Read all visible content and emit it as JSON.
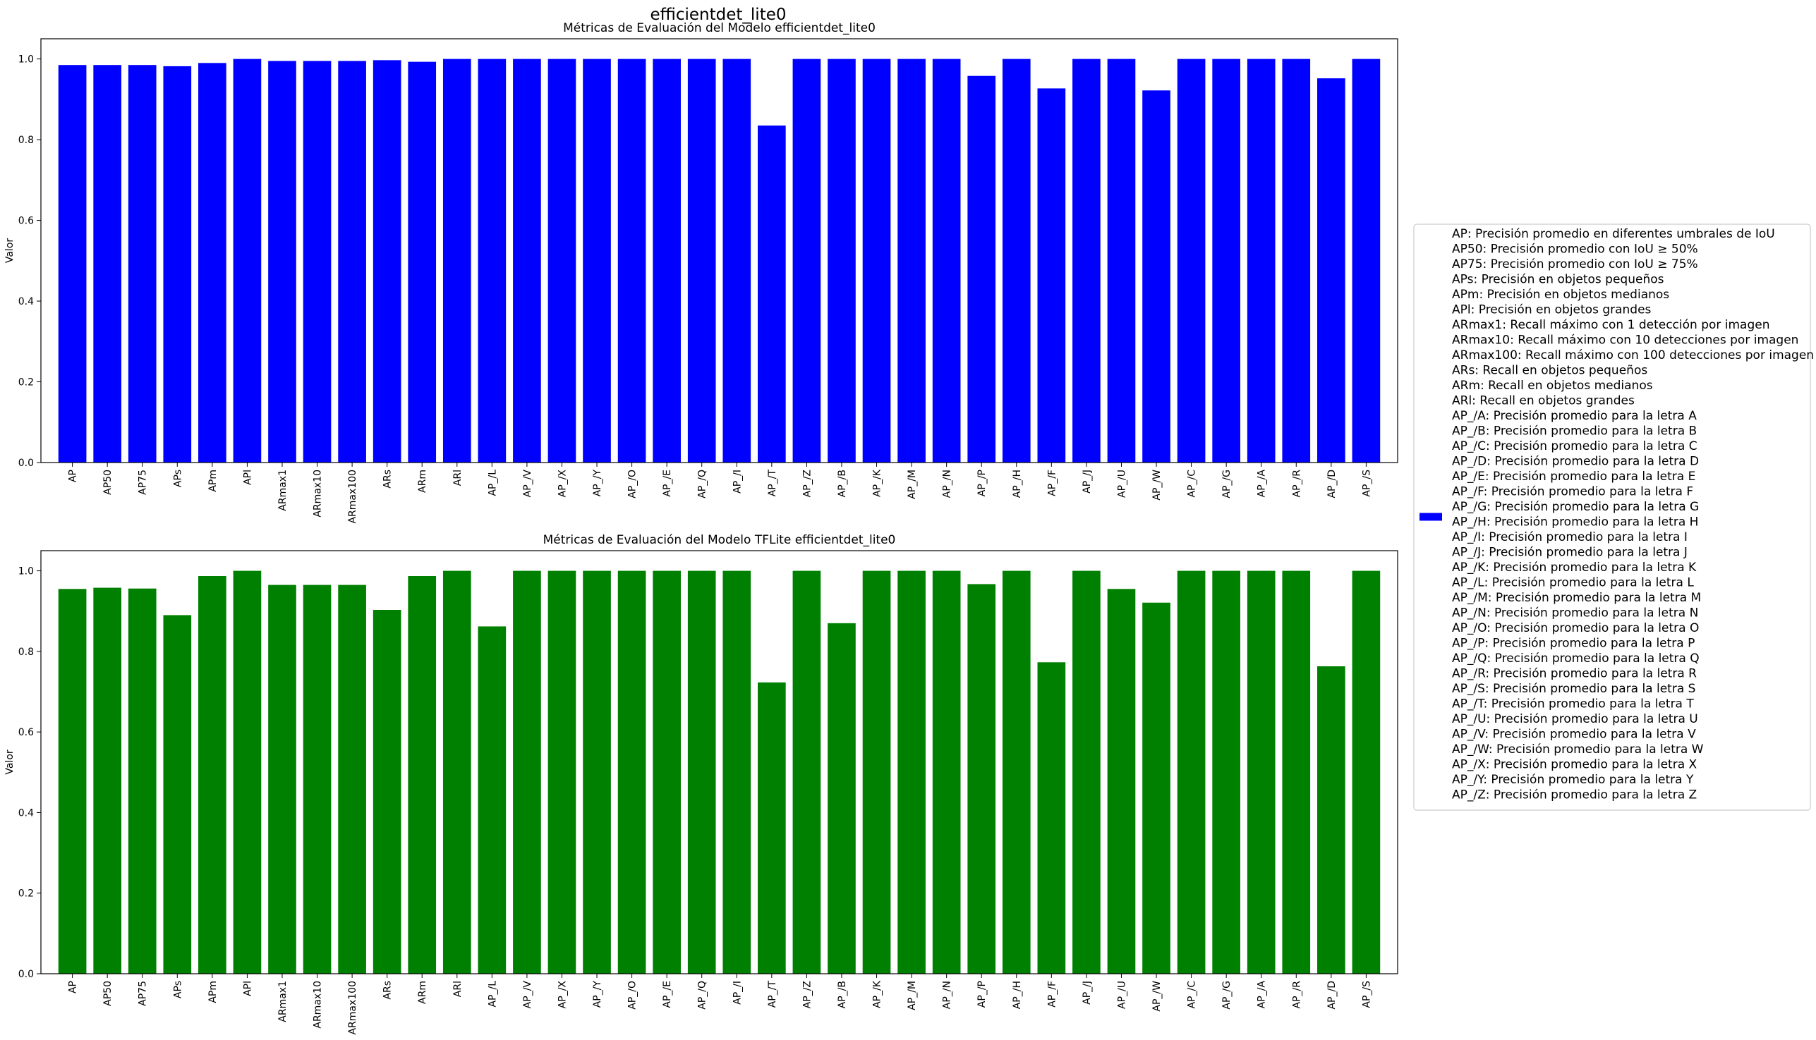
{
  "suptitle": "efficientdet_lite0",
  "chart_data": [
    {
      "type": "bar",
      "title": "Métricas de Evaluación del Modelo efficientdet_lite0",
      "xlabel": "",
      "ylabel": "Valor",
      "ylim": [
        0,
        1.05
      ],
      "yticks": [
        "0.0",
        "0.2",
        "0.4",
        "0.6",
        "0.8",
        "1.0"
      ],
      "color": "#0000ff",
      "categories": [
        "AP",
        "AP50",
        "AP75",
        "APs",
        "APm",
        "APl",
        "ARmax1",
        "ARmax10",
        "ARmax100",
        "ARs",
        "ARm",
        "ARl",
        "AP_/L",
        "AP_/V",
        "AP_/X",
        "AP_/Y",
        "AP_/O",
        "AP_/E",
        "AP_/Q",
        "AP_/I",
        "AP_/T",
        "AP_/Z",
        "AP_/B",
        "AP_/K",
        "AP_/M",
        "AP_/N",
        "AP_/P",
        "AP_/H",
        "AP_/F",
        "AP_/J",
        "AP_/U",
        "AP_/W",
        "AP_/C",
        "AP_/G",
        "AP_/A",
        "AP_/R",
        "AP_/D",
        "AP_/S"
      ],
      "values": [
        0.985,
        0.985,
        0.985,
        0.982,
        0.99,
        1.0,
        0.995,
        0.995,
        0.995,
        0.997,
        0.993,
        1.0,
        1.0,
        1.0,
        1.0,
        1.0,
        1.0,
        1.0,
        1.0,
        1.0,
        0.835,
        1.0,
        1.0,
        1.0,
        1.0,
        1.0,
        0.958,
        1.0,
        0.927,
        1.0,
        1.0,
        0.922,
        1.0,
        1.0,
        1.0,
        1.0,
        0.952,
        1.0
      ],
      "grid": false
    },
    {
      "type": "bar",
      "title": "Métricas de Evaluación del Modelo TFLite efficientdet_lite0",
      "xlabel": "",
      "ylabel": "Valor",
      "ylim": [
        0,
        1.05
      ],
      "yticks": [
        "0.0",
        "0.2",
        "0.4",
        "0.6",
        "0.8",
        "1.0"
      ],
      "color": "#008000",
      "categories": [
        "AP",
        "AP50",
        "AP75",
        "APs",
        "APm",
        "APl",
        "ARmax1",
        "ARmax10",
        "ARmax100",
        "ARs",
        "ARm",
        "ARl",
        "AP_/L",
        "AP_/V",
        "AP_/X",
        "AP_/Y",
        "AP_/O",
        "AP_/E",
        "AP_/Q",
        "AP_/I",
        "AP_/T",
        "AP_/Z",
        "AP_/B",
        "AP_/K",
        "AP_/M",
        "AP_/N",
        "AP_/P",
        "AP_/H",
        "AP_/F",
        "AP_/J",
        "AP_/U",
        "AP_/W",
        "AP_/C",
        "AP_/G",
        "AP_/A",
        "AP_/R",
        "AP_/D",
        "AP_/S"
      ],
      "values": [
        0.955,
        0.958,
        0.956,
        0.89,
        0.987,
        1.0,
        0.965,
        0.965,
        0.965,
        0.903,
        0.987,
        1.0,
        0.862,
        1.0,
        1.0,
        1.0,
        1.0,
        1.0,
        1.0,
        1.0,
        0.723,
        1.0,
        0.87,
        1.0,
        1.0,
        1.0,
        0.967,
        1.0,
        0.773,
        1.0,
        0.955,
        0.921,
        1.0,
        1.0,
        1.0,
        1.0,
        0.763,
        1.0
      ],
      "grid": false
    }
  ],
  "legend": {
    "placement": "center-right",
    "swatch_color": "#0000ff",
    "entries": [
      "AP: Precisión promedio en diferentes umbrales de IoU",
      "AP50: Precisión promedio con IoU ≥ 50%",
      "AP75: Precisión promedio con IoU ≥ 75%",
      "APs: Precisión en objetos pequeños",
      "APm: Precisión en objetos medianos",
      "APl: Precisión en objetos grandes",
      "ARmax1: Recall máximo con 1 detección por imagen",
      "ARmax10: Recall máximo con 10 detecciones por imagen",
      "ARmax100: Recall máximo con 100 detecciones por imagen",
      "ARs: Recall en objetos pequeños",
      "ARm: Recall en objetos medianos",
      "ARl: Recall en objetos grandes",
      "AP_/A: Precisión promedio para la letra A",
      "AP_/B: Precisión promedio para la letra B",
      "AP_/C: Precisión promedio para la letra C",
      "AP_/D: Precisión promedio para la letra D",
      "AP_/E: Precisión promedio para la letra E",
      "AP_/F: Precisión promedio para la letra F",
      "AP_/G: Precisión promedio para la letra G",
      "AP_/H: Precisión promedio para la letra H",
      "AP_/I: Precisión promedio para la letra I",
      "AP_/J: Precisión promedio para la letra J",
      "AP_/K: Precisión promedio para la letra K",
      "AP_/L: Precisión promedio para la letra L",
      "AP_/M: Precisión promedio para la letra M",
      "AP_/N: Precisión promedio para la letra N",
      "AP_/O: Precisión promedio para la letra O",
      "AP_/P: Precisión promedio para la letra P",
      "AP_/Q: Precisión promedio para la letra Q",
      "AP_/R: Precisión promedio para la letra R",
      "AP_/S: Precisión promedio para la letra S",
      "AP_/T: Precisión promedio para la letra T",
      "AP_/U: Precisión promedio para la letra U",
      "AP_/V: Precisión promedio para la letra V",
      "AP_/W: Precisión promedio para la letra W",
      "AP_/X: Precisión promedio para la letra X",
      "AP_/Y: Precisión promedio para la letra Y",
      "AP_/Z: Precisión promedio para la letra Z"
    ]
  }
}
